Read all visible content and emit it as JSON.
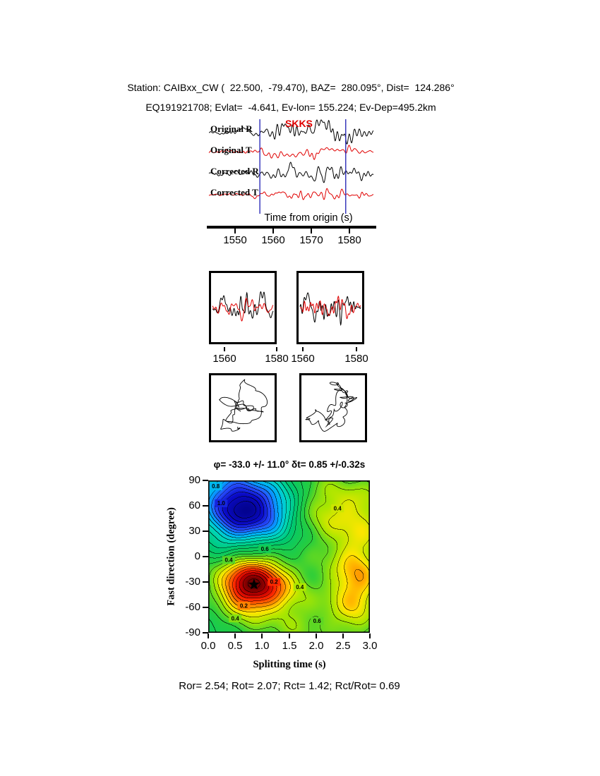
{
  "colors": {
    "trace_r": "#000000",
    "trace_t": "#e00000",
    "pick_line": "#2d2db8",
    "phase": "#e00000"
  },
  "header": {
    "line1": "Station: CAIBxx_CW (  22.500,  -79.470), BAZ=  280.095°, Dist=  124.286°",
    "line2": "EQ191921708; Evlat=  -4.641, Ev-lon= 155.224; Ev-Dep=495.2km"
  },
  "traces": {
    "labels": [
      "Original R",
      "Original T",
      "Corrected R",
      "Corrected T"
    ],
    "phase": "SKKS",
    "xlabel": "Time from origin (s)",
    "ticks": [
      "1550",
      "1560",
      "1570",
      "1580"
    ],
    "ticks_s": [
      1550,
      1560,
      1570,
      1580
    ],
    "time_range": [
      1542.6,
      1587.0
    ],
    "window_s": [
      1556.5,
      1579.0
    ],
    "seeds": [
      3,
      7,
      5,
      9
    ]
  },
  "window_panels": {
    "ticks": [
      "1560",
      "1580",
      "1560",
      "1580"
    ],
    "seeds": [
      21,
      22,
      23,
      24
    ]
  },
  "hodograms": {
    "seeds": [
      5,
      12
    ]
  },
  "chart_data": {
    "type": "heatmap",
    "subtype": "contour-misfit-map",
    "title": "φ= -33.0 +/- 11.0° δt= 0.85 +/-0.32s",
    "xlabel": "Splitting time (s)",
    "ylabel": "Fast direction (degree)",
    "xlim": [
      0,
      3
    ],
    "ylim": [
      -90,
      90
    ],
    "xticks": [
      0.0,
      0.5,
      1.0,
      1.5,
      2.0,
      2.5,
      3.0
    ],
    "yticks": [
      90,
      60,
      30,
      0,
      -30,
      -60,
      -90
    ],
    "xtick_labels": [
      "0.0",
      "0.5",
      "1.0",
      "1.5",
      "2.0",
      "2.5",
      "3.0"
    ],
    "ytick_labels": [
      "90",
      "60",
      "30",
      "0",
      "-30",
      "-60",
      "-90"
    ],
    "grid": false,
    "best_fit": {
      "phi_deg": -33.0,
      "phi_err_deg": 11.0,
      "dt_s": 0.85,
      "dt_err_s": 0.32
    },
    "star": {
      "x": 0.85,
      "y": -33
    },
    "contour_interval": 0.05,
    "field": {
      "base": 0.62,
      "ripple": 0.028,
      "bumps": [
        {
          "x": 0.72,
          "p": 56,
          "a": 0.62,
          "sx": 0.52,
          "sy": 26
        },
        {
          "x": 0.0,
          "p": 90,
          "a": 0.1,
          "sx": 0.45,
          "sy": 22
        },
        {
          "x": 0.85,
          "p": -33,
          "a": -0.6,
          "sx": 0.48,
          "sy": 22
        },
        {
          "x": 2.72,
          "p": -28,
          "a": -0.3,
          "sx": 0.4,
          "sy": 40
        },
        {
          "x": 2.5,
          "p": 58,
          "a": -0.22,
          "sx": 0.65,
          "sy": 30
        },
        {
          "x": 1.6,
          "p": -80,
          "a": -0.12,
          "sx": 0.8,
          "sy": 25
        }
      ]
    },
    "colormap": [
      [
        0.0,
        [
          110,
          0,
          0
        ]
      ],
      [
        0.1,
        [
          200,
          0,
          0
        ]
      ],
      [
        0.18,
        [
          255,
          40,
          0
        ]
      ],
      [
        0.28,
        [
          255,
          140,
          0
        ]
      ],
      [
        0.36,
        [
          255,
          230,
          0
        ]
      ],
      [
        0.44,
        [
          170,
          230,
          0
        ]
      ],
      [
        0.55,
        [
          40,
          205,
          60
        ]
      ],
      [
        0.68,
        [
          0,
          200,
          110
        ]
      ],
      [
        0.8,
        [
          0,
          215,
          195
        ]
      ],
      [
        0.9,
        [
          0,
          170,
          255
        ]
      ],
      [
        1.0,
        [
          40,
          80,
          255
        ]
      ],
      [
        1.12,
        [
          10,
          10,
          200
        ]
      ],
      [
        1.3,
        [
          0,
          0,
          120
        ]
      ]
    ],
    "contour_labels": [
      {
        "t": "0.8",
        "x": 0.14,
        "p": 83
      },
      {
        "t": "1.0",
        "x": 0.24,
        "p": 63
      },
      {
        "t": "0.4",
        "x": 2.4,
        "p": 57
      },
      {
        "t": "0.6",
        "x": 1.05,
        "p": 9
      },
      {
        "t": "0.4",
        "x": 0.38,
        "p": -4
      },
      {
        "t": "0.2",
        "x": 1.22,
        "p": -30
      },
      {
        "t": "0.4",
        "x": 1.7,
        "p": -36
      },
      {
        "t": "0.2",
        "x": 0.66,
        "p": -58
      },
      {
        "t": "0.4",
        "x": 0.5,
        "p": -73
      },
      {
        "t": "0.6",
        "x": 2.02,
        "p": -76
      }
    ]
  },
  "results": {
    "text": "Ror= 2.54; Rot= 2.07; Rct= 1.42; Rct/Rot= 0.69",
    "Ror": 2.54,
    "Rot": 2.07,
    "Rct": 1.42,
    "Rct_over_Rot": 0.69
  }
}
